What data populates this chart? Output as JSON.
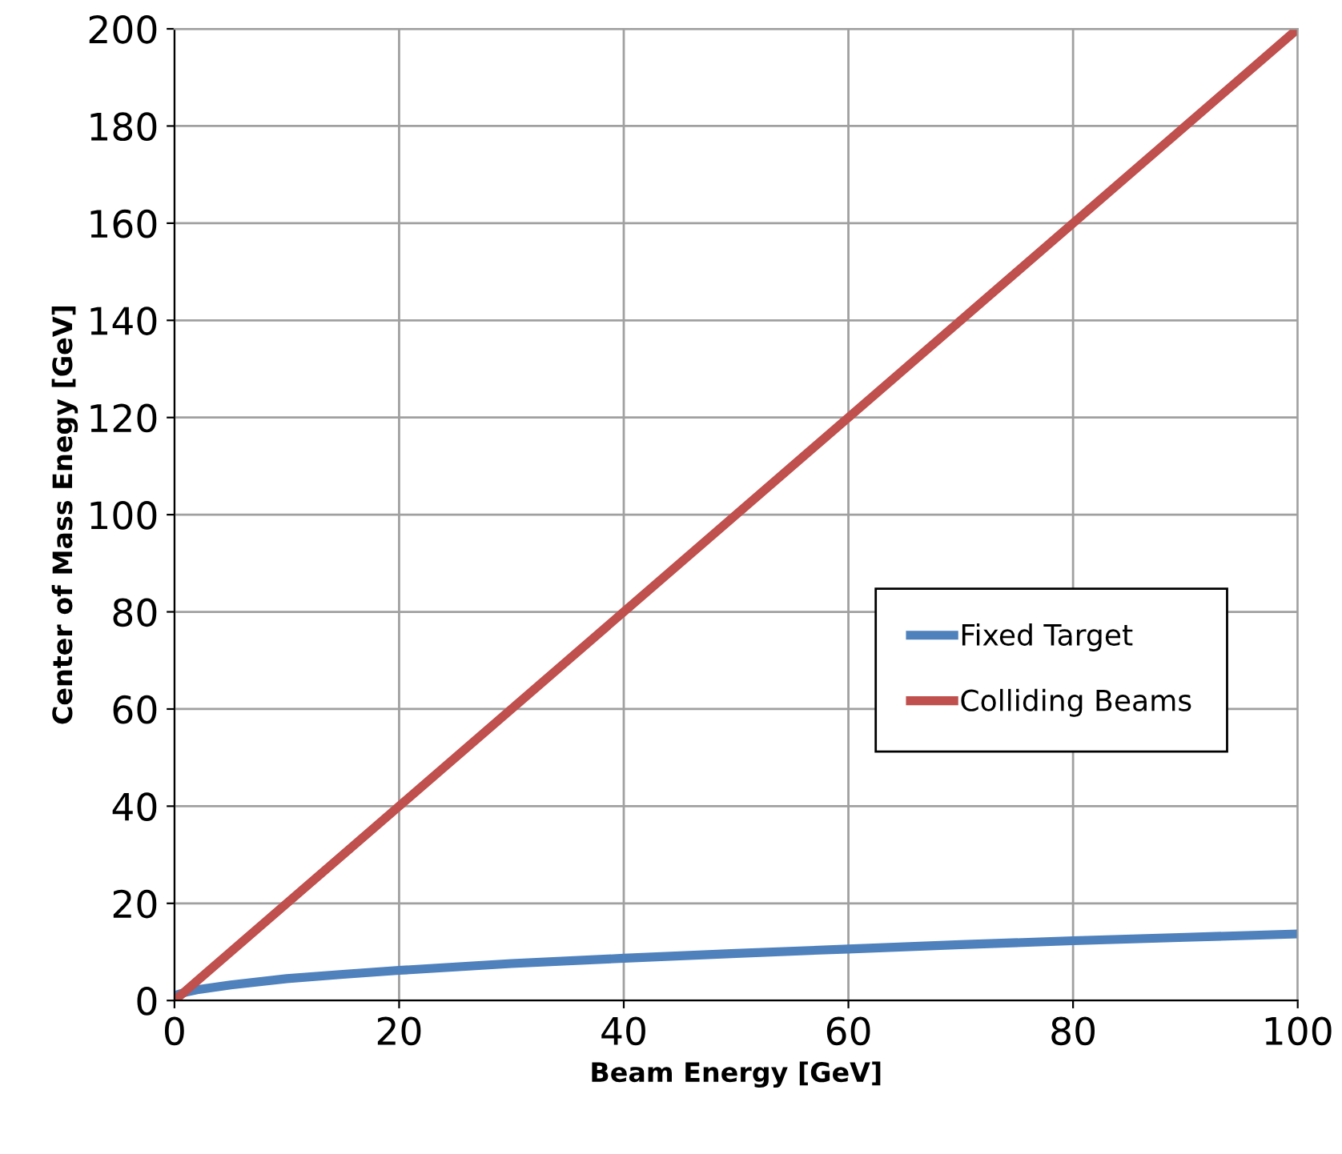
{
  "chart_data": {
    "type": "line",
    "xlabel": "Beam Energy [GeV]",
    "ylabel": "Center of Mass Enegy [GeV]",
    "series": [
      {
        "name": "Fixed Target",
        "color": "#4f81bd",
        "x": [
          0,
          1,
          2,
          5,
          10,
          15,
          20,
          30,
          40,
          50,
          60,
          70,
          80,
          90,
          100
        ],
        "values": [
          1.0,
          1.7,
          2.2,
          3.2,
          4.5,
          5.4,
          6.2,
          7.6,
          8.7,
          9.7,
          10.6,
          11.5,
          12.3,
          13.0,
          13.7
        ]
      },
      {
        "name": "Colliding Beams",
        "color": "#c0504d",
        "x": [
          0,
          100
        ],
        "values": [
          0,
          200
        ]
      }
    ],
    "xlim": [
      0,
      100
    ],
    "xticks": [
      0,
      20,
      40,
      60,
      80,
      100
    ],
    "ylim": [
      0,
      200
    ],
    "yticks": [
      0,
      20,
      40,
      60,
      80,
      100,
      120,
      140,
      160,
      180,
      200
    ],
    "grid": true,
    "legend": "right",
    "marker": "none",
    "line_style": "solid"
  }
}
